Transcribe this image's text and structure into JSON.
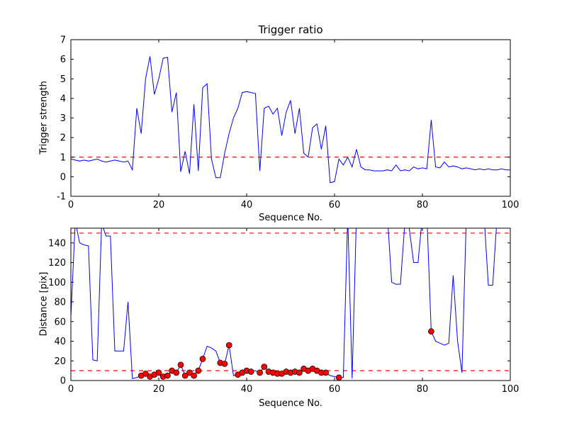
{
  "figure": {
    "background": "#ffffff",
    "line_color": "#0000ff",
    "threshold_color": "#ff0000",
    "marker_face": "#ff0000",
    "marker_edge": "#000000",
    "axis_color": "#000000"
  },
  "chart_data": [
    {
      "type": "line",
      "title": "Trigger ratio",
      "xlabel": "Sequence No.",
      "ylabel": "Trigger strength",
      "xlim": [
        0,
        100
      ],
      "ylim": [
        -1,
        7
      ],
      "xticks": [
        0,
        20,
        40,
        60,
        80,
        100
      ],
      "yticks": [
        -1,
        0,
        1,
        2,
        3,
        4,
        5,
        6,
        7
      ],
      "grid": false,
      "legend": "none",
      "threshold_lines": [
        1
      ],
      "x": [
        0,
        1,
        2,
        3,
        4,
        5,
        6,
        7,
        8,
        9,
        10,
        11,
        12,
        13,
        14,
        15,
        16,
        17,
        18,
        19,
        20,
        21,
        22,
        23,
        24,
        25,
        26,
        27,
        28,
        29,
        30,
        31,
        32,
        33,
        34,
        35,
        36,
        37,
        38,
        39,
        40,
        41,
        42,
        43,
        44,
        45,
        46,
        47,
        48,
        49,
        50,
        51,
        52,
        53,
        54,
        55,
        56,
        57,
        58,
        59,
        60,
        61,
        62,
        63,
        64,
        65,
        66,
        67,
        68,
        69,
        70,
        71,
        72,
        73,
        74,
        75,
        76,
        77,
        78,
        79,
        80,
        81,
        82,
        83,
        84,
        85,
        86,
        87,
        88,
        89,
        90,
        91,
        92,
        93,
        94,
        95,
        96,
        97,
        98,
        99,
        100
      ],
      "y": [
        0.9,
        0.85,
        0.8,
        0.85,
        0.8,
        0.85,
        0.9,
        0.8,
        0.75,
        0.8,
        0.85,
        0.8,
        0.75,
        0.8,
        0.35,
        3.5,
        2.2,
        5.0,
        6.15,
        4.2,
        5.0,
        6.05,
        6.1,
        3.3,
        4.3,
        0.25,
        1.3,
        0.15,
        3.7,
        0.3,
        4.55,
        4.75,
        0.9,
        -0.05,
        -0.05,
        1.2,
        2.2,
        3.0,
        3.5,
        4.3,
        4.35,
        4.3,
        4.25,
        0.3,
        3.5,
        3.6,
        3.2,
        3.5,
        2.1,
        3.3,
        3.9,
        2.2,
        3.5,
        1.2,
        1.0,
        2.5,
        2.7,
        1.4,
        2.6,
        -0.3,
        -0.25,
        0.9,
        0.6,
        1.0,
        0.5,
        1.4,
        0.5,
        0.35,
        0.35,
        0.3,
        0.3,
        0.3,
        0.35,
        0.3,
        0.6,
        0.3,
        0.35,
        0.3,
        0.5,
        0.4,
        0.45,
        0.4,
        2.9,
        0.5,
        0.45,
        0.75,
        0.5,
        0.55,
        0.5,
        0.4,
        0.45,
        0.4,
        0.35,
        0.4,
        0.35,
        0.4,
        0.35,
        0.35,
        0.4,
        0.35,
        0.35
      ]
    },
    {
      "type": "line",
      "title": "",
      "xlabel": "Sequence No.",
      "ylabel": "Distance [pix]",
      "xlim": [
        0,
        100
      ],
      "ylim": [
        0,
        155
      ],
      "xticks": [
        0,
        20,
        40,
        60,
        80,
        100
      ],
      "yticks": [
        0,
        20,
        40,
        60,
        80,
        100,
        120,
        140
      ],
      "grid": false,
      "legend": "none",
      "threshold_lines": [
        150,
        10
      ],
      "x": [
        0,
        1,
        2,
        3,
        4,
        5,
        6,
        7,
        8,
        9,
        10,
        11,
        12,
        13,
        14,
        15,
        16,
        17,
        18,
        19,
        20,
        21,
        22,
        23,
        24,
        25,
        26,
        27,
        28,
        29,
        30,
        31,
        32,
        33,
        34,
        35,
        36,
        37,
        38,
        39,
        40,
        41,
        42,
        43,
        44,
        45,
        46,
        47,
        48,
        49,
        50,
        51,
        52,
        53,
        54,
        55,
        56,
        57,
        58,
        59,
        60,
        61,
        62,
        63,
        64,
        65,
        66,
        67,
        68,
        69,
        70,
        71,
        72,
        73,
        74,
        75,
        76,
        77,
        78,
        79,
        80,
        81,
        82,
        83,
        84,
        85,
        86,
        87,
        88,
        89,
        90,
        91,
        92,
        93,
        94,
        95,
        96,
        97,
        98,
        99,
        100
      ],
      "y": [
        65,
        162,
        140,
        138,
        137,
        21,
        20,
        160,
        147,
        147,
        30,
        30,
        30,
        80,
        2,
        3,
        5,
        7,
        4,
        6,
        8,
        4,
        5,
        10,
        8,
        16,
        5,
        8,
        5,
        10,
        22,
        35,
        33,
        30,
        18,
        17,
        36,
        5,
        6,
        8,
        10,
        9,
        10,
        8,
        14,
        9,
        8,
        7,
        7,
        9,
        8,
        9,
        8,
        12,
        10,
        12,
        10,
        8,
        8,
        5,
        4,
        3,
        3,
        168,
        2,
        170,
        170,
        170,
        170,
        170,
        170,
        170,
        170,
        100,
        98,
        98,
        160,
        155,
        120,
        120,
        168,
        170,
        50,
        40,
        38,
        36,
        38,
        107,
        40,
        8,
        168,
        170,
        170,
        170,
        170,
        97,
        97,
        168,
        170,
        170,
        170
      ],
      "markers": {
        "x": [
          16,
          17,
          18,
          19,
          20,
          21,
          22,
          23,
          24,
          25,
          26,
          27,
          28,
          29,
          30,
          34,
          35,
          36,
          38,
          39,
          40,
          41,
          43,
          44,
          45,
          46,
          47,
          48,
          49,
          50,
          51,
          52,
          53,
          54,
          55,
          56,
          57,
          58,
          61,
          82
        ],
        "y": [
          5,
          7,
          4,
          6,
          8,
          4,
          5,
          10,
          8,
          16,
          5,
          8,
          5,
          10,
          22,
          18,
          17,
          36,
          6,
          8,
          10,
          9,
          8,
          14,
          9,
          8,
          7,
          7,
          9,
          8,
          9,
          8,
          12,
          10,
          12,
          10,
          8,
          8,
          3,
          50
        ]
      }
    }
  ]
}
